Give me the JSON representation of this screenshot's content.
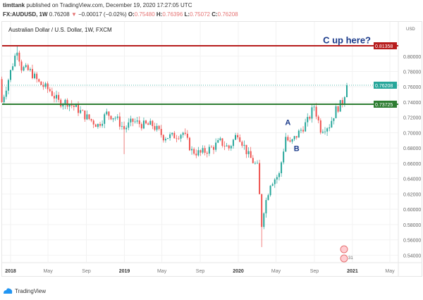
{
  "header": {
    "publisher": "timttank",
    "published_text": "published on TradingView.com, December 19, 2020 17:27:05 UTC",
    "symbol": "FX:AUDUSD, 1W",
    "last": "0.76208",
    "change": "−0.00017 (−0.02%)",
    "o_label": "O:",
    "o": "0.75480",
    "h_label": "H:",
    "h": "0.76396",
    "l_label": "L:",
    "l": "0.75072",
    "c_label": "C:",
    "c": "0.76208"
  },
  "chart_title": "Australian Dollar / U.S. Dollar, 1W, FXCM",
  "currency": "USD",
  "brand": "TradingView",
  "colors": {
    "up": "#26a69a",
    "down": "#ef5350",
    "resistance": "#b71c1c",
    "support": "#2e7d32",
    "last_price": "#26a69a",
    "annotation": "#1a3a8a"
  },
  "chart_data": {
    "type": "candlestick",
    "ylim": [
      0.53,
      0.825
    ],
    "y_ticks": [
      "0.54000",
      "0.56000",
      "0.58000",
      "0.60000",
      "0.62000",
      "0.64000",
      "0.66000",
      "0.68000",
      "0.70000",
      "0.72000",
      "0.74000",
      "0.76000",
      "0.78000",
      "0.80000"
    ],
    "x_ticks": [
      {
        "label": "2018",
        "date": "2018-01-01",
        "bold": true
      },
      {
        "label": "May",
        "date": "2018-05-01"
      },
      {
        "label": "Sep",
        "date": "2018-09-01"
      },
      {
        "label": "2019",
        "date": "2019-01-01",
        "bold": true
      },
      {
        "label": "May",
        "date": "2019-05-01"
      },
      {
        "label": "Sep",
        "date": "2019-09-01"
      },
      {
        "label": "2020",
        "date": "2020-01-01",
        "bold": true
      },
      {
        "label": "May",
        "date": "2020-05-01"
      },
      {
        "label": "Sep",
        "date": "2020-09-01"
      },
      {
        "label": "2021",
        "date": "2021-01-01",
        "bold": true
      },
      {
        "label": "May",
        "date": "2021-05-01"
      }
    ],
    "approx_weekly_closes": [
      [
        "2018-01-01",
        0.78
      ],
      [
        "2018-01-22",
        0.81
      ],
      [
        "2018-02-05",
        0.785
      ],
      [
        "2018-03-05",
        0.78
      ],
      [
        "2018-04-02",
        0.765
      ],
      [
        "2018-05-07",
        0.755
      ],
      [
        "2018-06-04",
        0.74
      ],
      [
        "2018-07-02",
        0.74
      ],
      [
        "2018-08-06",
        0.73
      ],
      [
        "2018-09-03",
        0.72
      ],
      [
        "2018-10-08",
        0.71
      ],
      [
        "2018-11-05",
        0.725
      ],
      [
        "2018-12-03",
        0.72
      ],
      [
        "2018-12-31",
        0.705
      ],
      [
        "2019-01-28",
        0.715
      ],
      [
        "2019-03-04",
        0.71
      ],
      [
        "2019-04-01",
        0.71
      ],
      [
        "2019-05-06",
        0.695
      ],
      [
        "2019-06-03",
        0.695
      ],
      [
        "2019-07-08",
        0.7
      ],
      [
        "2019-08-05",
        0.676
      ],
      [
        "2019-09-02",
        0.673
      ],
      [
        "2019-10-07",
        0.68
      ],
      [
        "2019-11-04",
        0.688
      ],
      [
        "2019-12-02",
        0.68
      ],
      [
        "2019-12-30",
        0.7
      ],
      [
        "2020-02-03",
        0.67
      ],
      [
        "2020-03-02",
        0.655
      ],
      [
        "2020-03-16",
        0.58
      ],
      [
        "2020-03-23",
        0.6
      ],
      [
        "2020-04-13",
        0.635
      ],
      [
        "2020-05-11",
        0.645
      ],
      [
        "2020-06-01",
        0.695
      ],
      [
        "2020-06-15",
        0.685
      ],
      [
        "2020-07-13",
        0.7
      ],
      [
        "2020-08-10",
        0.715
      ],
      [
        "2020-08-31",
        0.735
      ],
      [
        "2020-09-21",
        0.705
      ],
      [
        "2020-10-19",
        0.71
      ],
      [
        "2020-11-09",
        0.73
      ],
      [
        "2020-11-30",
        0.74
      ],
      [
        "2020-12-14",
        0.762
      ]
    ],
    "low_extreme": 0.5506,
    "high_extreme": 0.8136,
    "horizontal_lines": [
      {
        "value": 0.81358,
        "label": "0.81358",
        "color": "#b71c1c"
      },
      {
        "value": 0.73725,
        "label": "0.73725",
        "color": "#2e7d32"
      }
    ],
    "last_price": {
      "value": 0.76208,
      "label": "0.76208"
    },
    "annotations": [
      {
        "text": "A",
        "date": "2020-06-08",
        "value": 0.71
      },
      {
        "text": "B",
        "date": "2020-07-06",
        "value": 0.676
      },
      {
        "text": "C up here?",
        "date": "2021-02-15",
        "value": 0.817
      }
    ]
  }
}
